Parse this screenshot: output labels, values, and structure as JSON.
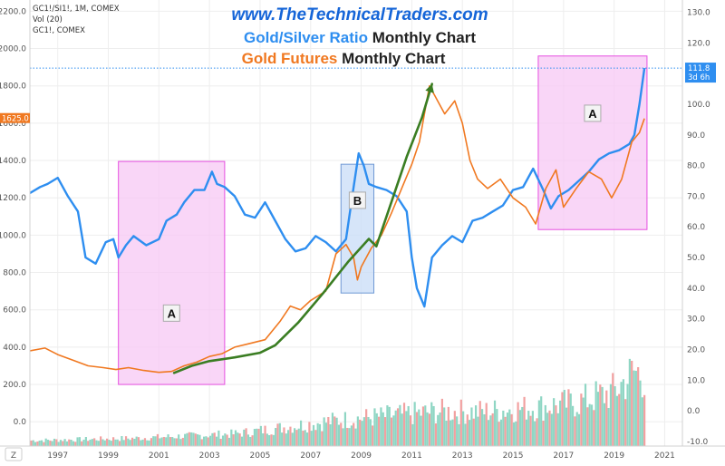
{
  "header": {
    "symbol_line": "GC1!/SI1!, 1M, COMEX",
    "vol_line": "Vol (20)",
    "symbol2_line": "GC1!, COMEX"
  },
  "titles": {
    "site": "www.TheTechnicalTraders.com",
    "line1_colored": "Gold/Silver Ratio",
    "line1_rest": " Monthly Chart",
    "line2_colored": "Gold Futures",
    "line2_rest": " Monthly Chart"
  },
  "badges": {
    "ratio_value": "111.8",
    "ratio_countdown": "3d 6h",
    "gold_value": "1625.0"
  },
  "corner_label": "Z",
  "colors": {
    "ratio_line": "#2e8ef0",
    "gold_line": "#f07820",
    "trend_line": "#3a7d22",
    "box_a_fill": "#f7c8f4",
    "box_a_stroke": "#e64fe0",
    "box_b_fill": "#c8dcf7",
    "box_b_stroke": "#6e98d4",
    "vol_green": "#8fd6c4",
    "vol_red": "#f2a0a0"
  },
  "chart_data": {
    "type": "line",
    "x_ticks": [
      "1997",
      "1999",
      "2001",
      "2003",
      "2005",
      "2007",
      "2009",
      "2011",
      "2013",
      "2015",
      "2017",
      "2019",
      "2021"
    ],
    "left_axis": {
      "ticks": [
        "2200.0",
        "2000.0",
        "1800.0",
        "1600.0",
        "1400.0",
        "1200.0",
        "1000.0",
        "800.0",
        "600.0",
        "400.0",
        "200.0",
        "0.0"
      ],
      "ylim": [
        -130,
        2260
      ]
    },
    "right_axis": {
      "ticks": [
        "130.0",
        "120.0",
        "110.0",
        "100.0",
        "90.0",
        "80.0",
        "70.0",
        "60.0",
        "50.0",
        "40.0",
        "30.0",
        "20.0",
        "10.0",
        "0.0",
        "-10.0"
      ],
      "ylim": [
        -11.5,
        134
      ]
    },
    "series": [
      {
        "name": "Gold/Silver Ratio",
        "axis": "right",
        "x": [
          1995.9,
          1996.3,
          1996.6,
          1997.0,
          1997.4,
          1997.8,
          1998.1,
          1998.5,
          1998.9,
          1999.2,
          1999.4,
          1999.7,
          2000.0,
          2000.5,
          2001.0,
          2001.3,
          2001.7,
          2002.0,
          2002.4,
          2002.8,
          2003.1,
          2003.3,
          2003.6,
          2004.0,
          2004.4,
          2004.8,
          2005.2,
          2005.6,
          2006.0,
          2006.4,
          2006.8,
          2007.2,
          2007.6,
          2008.0,
          2008.4,
          2008.7,
          2008.9,
          2009.1,
          2009.3,
          2009.6,
          2010.0,
          2010.4,
          2010.8,
          2011.0,
          2011.2,
          2011.5,
          2011.8,
          2012.2,
          2012.6,
          2013.0,
          2013.4,
          2013.8,
          2014.2,
          2014.6,
          2015.0,
          2015.4,
          2015.8,
          2016.2,
          2016.5,
          2016.8,
          2017.2,
          2017.6,
          2018.0,
          2018.4,
          2018.8,
          2019.2,
          2019.6,
          2019.8,
          2020.0,
          2020.2
        ],
        "values": [
          71,
          73,
          74,
          76,
          70,
          65,
          50,
          48,
          55,
          56,
          50,
          54,
          57,
          54,
          56,
          62,
          64,
          68,
          72,
          72,
          78,
          74,
          73,
          70,
          64,
          63,
          68,
          62,
          56,
          52,
          53,
          57,
          55,
          52,
          56,
          73,
          84,
          80,
          74,
          73,
          72,
          70,
          65,
          50,
          40,
          34,
          50,
          54,
          57,
          55,
          62,
          63,
          65,
          67,
          72,
          73,
          79,
          72,
          66,
          70,
          72,
          75,
          78,
          82,
          84,
          85,
          87,
          90,
          100,
          111.8
        ]
      },
      {
        "name": "Gold Futures",
        "axis": "left",
        "x": [
          1995.9,
          1996.5,
          1997.0,
          1997.6,
          1998.2,
          1998.8,
          1999.3,
          1999.8,
          2000.4,
          2001.0,
          2001.5,
          2002.0,
          2002.5,
          2003.0,
          2003.5,
          2004.0,
          2004.6,
          2005.2,
          2005.8,
          2006.2,
          2006.6,
          2007.0,
          2007.6,
          2008.0,
          2008.4,
          2008.7,
          2008.85,
          2009.0,
          2009.4,
          2009.8,
          2010.2,
          2010.6,
          2011.0,
          2011.3,
          2011.7,
          2011.9,
          2012.3,
          2012.7,
          2013.0,
          2013.3,
          2013.6,
          2014.0,
          2014.5,
          2015.0,
          2015.5,
          2015.9,
          2016.3,
          2016.7,
          2017.0,
          2017.5,
          2018.0,
          2018.5,
          2018.9,
          2019.3,
          2019.7,
          2020.0,
          2020.2
        ],
        "values": [
          380,
          395,
          360,
          330,
          300,
          290,
          280,
          290,
          275,
          265,
          270,
          300,
          320,
          350,
          365,
          400,
          420,
          440,
          540,
          620,
          600,
          650,
          700,
          900,
          950,
          880,
          760,
          830,
          930,
          1000,
          1120,
          1250,
          1380,
          1500,
          1800,
          1750,
          1650,
          1720,
          1600,
          1400,
          1300,
          1250,
          1300,
          1200,
          1150,
          1060,
          1250,
          1350,
          1150,
          1250,
          1340,
          1300,
          1200,
          1300,
          1500,
          1550,
          1625
        ]
      },
      {
        "name": "Volume",
        "axis": "right",
        "style": "bars",
        "x": [
          1996.0,
          1998.0,
          2000.0,
          2002.0,
          2004.0,
          2006.0,
          2008.0,
          2010.0,
          2012.0,
          2014.0,
          2016.0,
          2017.5,
          2019.0,
          2019.8,
          2020.2
        ],
        "values": [
          -9,
          -8.5,
          -8,
          -7,
          -6,
          -3,
          0,
          2,
          4,
          4,
          6,
          8,
          13,
          22,
          20
        ]
      }
    ],
    "boxes": [
      {
        "label": "A",
        "x0": 1999.4,
        "x1": 2003.6,
        "y0": 200,
        "y1": 1395,
        "axis": "left"
      },
      {
        "label": "B",
        "x0": 2008.2,
        "x1": 2009.5,
        "y0": 690,
        "y1": 1380,
        "axis": "left"
      },
      {
        "label": "A",
        "x0": 2016.0,
        "x1": 2020.3,
        "y0": 1030,
        "y1": 1960,
        "axis": "left"
      }
    ],
    "trend_line": {
      "axis": "left",
      "x": [
        2001.6,
        2002.3,
        2003.0,
        2004.0,
        2005.0,
        2005.6,
        2006.5,
        2007.5,
        2008.5,
        2009.3,
        2009.6,
        2010.2,
        2010.8,
        2011.4,
        2011.8
      ],
      "values": [
        262,
        300,
        325,
        345,
        370,
        410,
        530,
        690,
        860,
        980,
        940,
        1180,
        1420,
        1630,
        1810
      ]
    },
    "reference_line": {
      "axis": "right",
      "value": 111.8
    }
  }
}
